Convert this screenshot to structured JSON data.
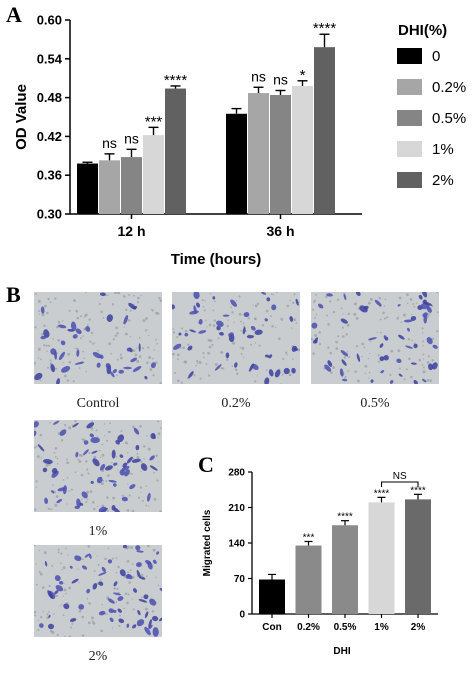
{
  "panels": {
    "A": "A",
    "B": "B",
    "C": "C"
  },
  "chart_data": [
    {
      "panel": "A",
      "type": "bar",
      "title": "",
      "xlabel": "Time (hours)",
      "ylabel": "OD Value",
      "ylim": [
        0.3,
        0.6
      ],
      "yticks": [
        "0.30",
        "0.36",
        "0.42",
        "0.48",
        "0.54",
        "0.60"
      ],
      "categories": [
        "12 h",
        "36 h"
      ],
      "legend_title": "DHI(%)",
      "legend_position": "right",
      "series": [
        {
          "name": "0",
          "color": "#000000",
          "values": [
            0.378,
            0.455
          ],
          "errors": [
            0.002,
            0.008
          ],
          "sig": [
            "",
            ""
          ]
        },
        {
          "name": "0.2%",
          "color": "#a6a6a6",
          "values": [
            0.383,
            0.487
          ],
          "errors": [
            0.01,
            0.009
          ],
          "sig": [
            "ns",
            "ns"
          ]
        },
        {
          "name": "0.5%",
          "color": "#858585",
          "values": [
            0.388,
            0.484
          ],
          "errors": [
            0.012,
            0.007
          ],
          "sig": [
            "ns",
            "ns"
          ]
        },
        {
          "name": "1%",
          "color": "#d7d7d7",
          "values": [
            0.422,
            0.498
          ],
          "errors": [
            0.012,
            0.008
          ],
          "sig": [
            "***",
            "*"
          ]
        },
        {
          "name": "2%",
          "color": "#616161",
          "values": [
            0.494,
            0.558
          ],
          "errors": [
            0.004,
            0.02
          ],
          "sig": [
            "****",
            "****"
          ]
        }
      ]
    },
    {
      "panel": "C",
      "type": "bar",
      "title": "",
      "xlabel": "DHI",
      "ylabel": "Migrated cells",
      "ylim": [
        0,
        280
      ],
      "yticks": [
        "0",
        "70",
        "140",
        "210",
        "280"
      ],
      "categories": [
        "Con",
        "0.2%",
        "0.5%",
        "1%",
        "2%"
      ],
      "values": [
        68,
        135,
        175,
        220,
        226
      ],
      "errors": [
        10,
        8,
        9,
        10,
        10
      ],
      "colors": [
        "#000000",
        "#8a8a8a",
        "#8a8a8a",
        "#d7d7d7",
        "#6a6a6a"
      ],
      "sig": [
        "",
        "***",
        "****",
        "****",
        "****"
      ],
      "bracket": {
        "from": 3,
        "to": 4,
        "label": "NS"
      }
    }
  ],
  "images": [
    {
      "caption": "Control"
    },
    {
      "caption": "0.2%"
    },
    {
      "caption": "0.5%"
    },
    {
      "caption": "1%"
    },
    {
      "caption": "2%"
    }
  ]
}
